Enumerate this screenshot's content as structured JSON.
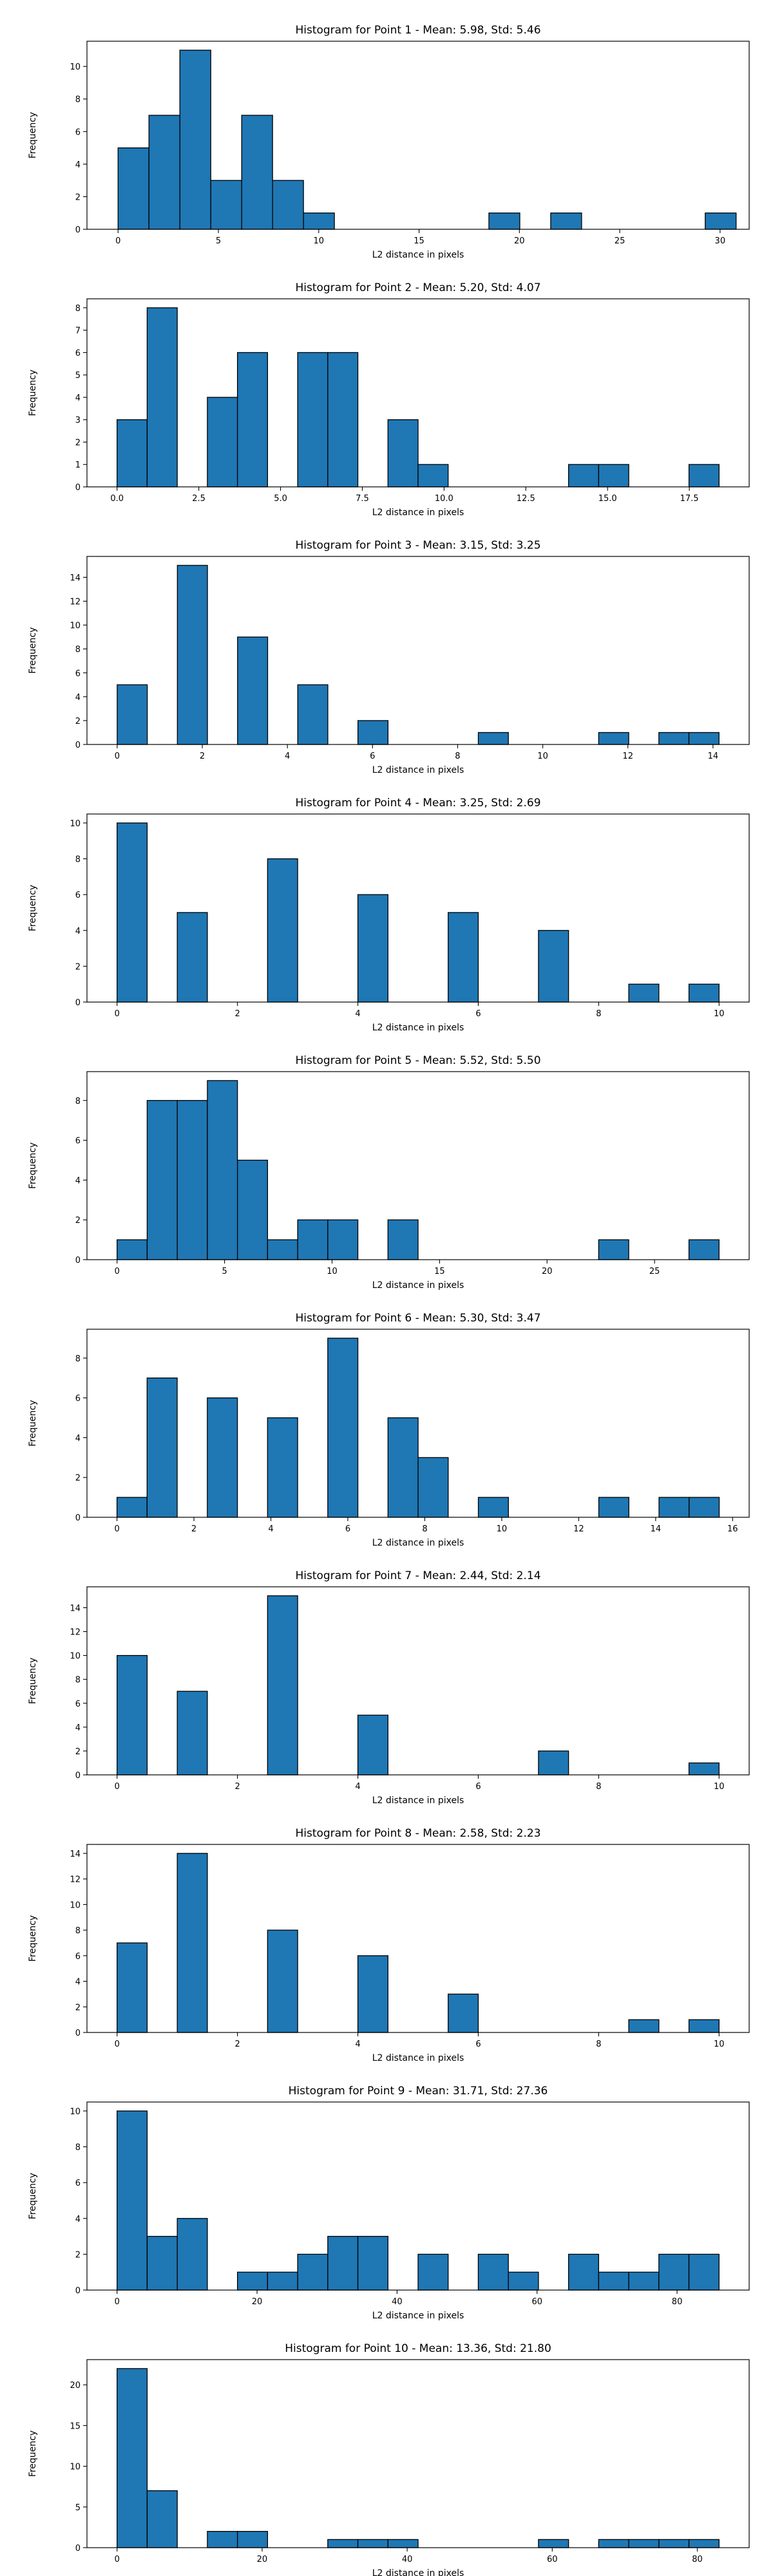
{
  "chart_data": [
    {
      "type": "bar",
      "title": "Histogram for Point 1 - Mean: 5.98, Std: 5.46",
      "xlabel": "L2 distance in pixels",
      "ylabel": "Frequency",
      "xlim": [
        -1.55,
        31.45
      ],
      "ylim": [
        0,
        11.55
      ],
      "xticks": [
        0,
        5,
        10,
        15,
        20,
        25,
        30
      ],
      "xtick_labels": [
        "0",
        "5",
        "10",
        "15",
        "20",
        "25",
        "30"
      ],
      "yticks": [
        0,
        2,
        4,
        6,
        8,
        10
      ],
      "bin_edges_start": 0,
      "bin_width": 1.54,
      "counts": [
        5,
        7,
        11,
        3,
        7,
        3,
        1,
        0,
        0,
        0,
        0,
        0,
        1,
        0,
        1,
        0,
        0,
        0,
        0,
        1
      ]
    },
    {
      "type": "bar",
      "title": "Histogram for Point 2 - Mean: 5.20, Std: 4.07",
      "xlabel": "L2 distance in pixels",
      "ylabel": "Frequency",
      "xlim": [
        -0.92,
        19.33
      ],
      "ylim": [
        0,
        8.4
      ],
      "xticks": [
        0,
        2.5,
        5,
        7.5,
        10,
        12.5,
        15,
        17.5
      ],
      "xtick_labels": [
        "0.0",
        "2.5",
        "5.0",
        "7.5",
        "10.0",
        "12.5",
        "15.0",
        "17.5"
      ],
      "yticks": [
        0,
        1,
        2,
        3,
        4,
        5,
        6,
        7,
        8
      ],
      "bin_edges_start": 0,
      "bin_width": 0.9205,
      "counts": [
        3,
        8,
        0,
        4,
        6,
        0,
        6,
        6,
        0,
        3,
        1,
        0,
        0,
        0,
        0,
        1,
        1,
        0,
        0,
        1
      ]
    },
    {
      "type": "bar",
      "title": "Histogram for Point 3 - Mean: 3.15, Std: 3.25",
      "xlabel": "L2 distance in pixels",
      "ylabel": "Frequency",
      "xlim": [
        -0.71,
        14.85
      ],
      "ylim": [
        0,
        15.75
      ],
      "xticks": [
        0,
        2,
        4,
        6,
        8,
        10,
        12,
        14
      ],
      "xtick_labels": [
        "0",
        "2",
        "4",
        "6",
        "8",
        "10",
        "12",
        "14"
      ],
      "yticks": [
        0,
        2,
        4,
        6,
        8,
        10,
        12,
        14
      ],
      "bin_edges_start": 0,
      "bin_width": 0.7071,
      "counts": [
        5,
        0,
        15,
        0,
        9,
        0,
        5,
        0,
        2,
        0,
        0,
        0,
        1,
        0,
        0,
        0,
        1,
        0,
        1,
        1
      ]
    },
    {
      "type": "bar",
      "title": "Histogram for Point 4 - Mean: 3.25, Std: 2.69",
      "xlabel": "L2 distance in pixels",
      "ylabel": "Frequency",
      "xlim": [
        -0.5,
        10.5
      ],
      "ylim": [
        0,
        10.5
      ],
      "xticks": [
        0,
        2,
        4,
        6,
        8,
        10
      ],
      "xtick_labels": [
        "0",
        "2",
        "4",
        "6",
        "8",
        "10"
      ],
      "yticks": [
        0,
        2,
        4,
        6,
        8,
        10
      ],
      "bin_edges_start": 0,
      "bin_width": 0.5,
      "counts": [
        10,
        0,
        5,
        0,
        0,
        8,
        0,
        0,
        6,
        0,
        0,
        5,
        0,
        0,
        4,
        0,
        0,
        1,
        0,
        1
      ]
    },
    {
      "type": "bar",
      "title": "Histogram for Point 5 - Mean: 5.52, Std: 5.50",
      "xlabel": "L2 distance in pixels",
      "ylabel": "Frequency",
      "xlim": [
        -1.4,
        29.4
      ],
      "ylim": [
        0,
        9.45
      ],
      "xticks": [
        0,
        5,
        10,
        15,
        20,
        25
      ],
      "xtick_labels": [
        "0",
        "5",
        "10",
        "15",
        "20",
        "25"
      ],
      "yticks": [
        0,
        2,
        4,
        6,
        8
      ],
      "bin_edges_start": 0,
      "bin_width": 1.4,
      "counts": [
        1,
        8,
        8,
        9,
        5,
        1,
        2,
        2,
        0,
        2,
        0,
        0,
        0,
        0,
        0,
        0,
        1,
        0,
        0,
        1
      ]
    },
    {
      "type": "bar",
      "title": "Histogram for Point 6 - Mean: 5.30, Std: 3.47",
      "xlabel": "L2 distance in pixels",
      "ylabel": "Frequency",
      "xlim": [
        -0.78,
        16.43
      ],
      "ylim": [
        0,
        9.45
      ],
      "xticks": [
        0,
        2,
        4,
        6,
        8,
        10,
        12,
        14,
        16
      ],
      "xtick_labels": [
        "0",
        "2",
        "4",
        "6",
        "8",
        "10",
        "12",
        "14",
        "16"
      ],
      "yticks": [
        0,
        2,
        4,
        6,
        8
      ],
      "bin_edges_start": 0,
      "bin_width": 0.7826,
      "counts": [
        1,
        7,
        0,
        6,
        0,
        5,
        0,
        9,
        0,
        5,
        3,
        0,
        1,
        0,
        0,
        0,
        1,
        0,
        1,
        1
      ]
    },
    {
      "type": "bar",
      "title": "Histogram for Point 7 - Mean: 2.44, Std: 2.14",
      "xlabel": "L2 distance in pixels",
      "ylabel": "Frequency",
      "xlim": [
        -0.5,
        10.5
      ],
      "ylim": [
        0,
        15.75
      ],
      "xticks": [
        0,
        2,
        4,
        6,
        8,
        10
      ],
      "xtick_labels": [
        "0",
        "2",
        "4",
        "6",
        "8",
        "10"
      ],
      "yticks": [
        0,
        2,
        4,
        6,
        8,
        10,
        12,
        14
      ],
      "bin_edges_start": 0,
      "bin_width": 0.5,
      "counts": [
        10,
        0,
        7,
        0,
        0,
        15,
        0,
        0,
        5,
        0,
        0,
        0,
        0,
        0,
        2,
        0,
        0,
        0,
        0,
        1
      ]
    },
    {
      "type": "bar",
      "title": "Histogram for Point 8 - Mean: 2.58, Std: 2.23",
      "xlabel": "L2 distance in pixels",
      "ylabel": "Frequency",
      "xlim": [
        -0.5,
        10.5
      ],
      "ylim": [
        0,
        14.7
      ],
      "xticks": [
        0,
        2,
        4,
        6,
        8,
        10
      ],
      "xtick_labels": [
        "0",
        "2",
        "4",
        "6",
        "8",
        "10"
      ],
      "yticks": [
        0,
        2,
        4,
        6,
        8,
        10,
        12,
        14
      ],
      "bin_edges_start": 0,
      "bin_width": 0.5,
      "counts": [
        7,
        0,
        14,
        0,
        0,
        8,
        0,
        0,
        6,
        0,
        0,
        3,
        0,
        0,
        0,
        0,
        0,
        1,
        0,
        1
      ]
    },
    {
      "type": "bar",
      "title": "Histogram for Point 9 - Mean: 31.71, Std: 27.36",
      "xlabel": "L2 distance in pixels",
      "ylabel": "Frequency",
      "xlim": [
        -4.3,
        90.3
      ],
      "ylim": [
        0,
        10.5
      ],
      "xticks": [
        0,
        20,
        40,
        60,
        80
      ],
      "xtick_labels": [
        "0",
        "20",
        "40",
        "60",
        "80"
      ],
      "yticks": [
        0,
        2,
        4,
        6,
        8,
        10
      ],
      "bin_edges_start": 0,
      "bin_width": 4.3,
      "counts": [
        10,
        3,
        4,
        0,
        1,
        1,
        2,
        3,
        3,
        0,
        2,
        0,
        2,
        1,
        0,
        2,
        1,
        1,
        2,
        2
      ]
    },
    {
      "type": "bar",
      "title": "Histogram for Point 10 - Mean: 13.36, Std: 21.80",
      "xlabel": "L2 distance in pixels",
      "ylabel": "Frequency",
      "xlim": [
        -4.15,
        87.15
      ],
      "ylim": [
        0,
        23.1
      ],
      "xticks": [
        0,
        20,
        40,
        60,
        80
      ],
      "xtick_labels": [
        "0",
        "20",
        "40",
        "60",
        "80"
      ],
      "yticks": [
        0,
        5,
        10,
        15,
        20
      ],
      "bin_edges_start": 0,
      "bin_width": 4.15,
      "counts": [
        22,
        7,
        0,
        2,
        2,
        0,
        0,
        1,
        1,
        1,
        0,
        0,
        0,
        0,
        1,
        0,
        1,
        1,
        1,
        1
      ]
    }
  ]
}
